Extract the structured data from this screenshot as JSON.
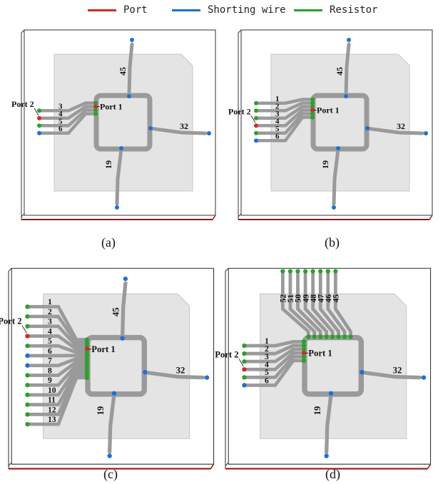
{
  "legend": {
    "items": [
      {
        "label": "Port",
        "color": "#d62728"
      },
      {
        "label": "Shorting wire",
        "color": "#1f6fd6"
      },
      {
        "label": "Resistor",
        "color": "#2ca02c"
      }
    ]
  },
  "colors": {
    "substrate": "#e4e4e4",
    "box_edge": "#8b1a1a",
    "trace": "#9a9a9a",
    "trace_edge": "#555555",
    "port": "#d62728",
    "short": "#1f6fd6",
    "resistor": "#2ca02c"
  },
  "panels": [
    {
      "caption": "(a)",
      "port1_label": "Port 1",
      "port2_label": "Port 2",
      "left_wires": [
        "3",
        "4",
        "5",
        "6"
      ],
      "left_terminals": [
        "resistor",
        "port",
        "resistor",
        "short"
      ],
      "top_wires": [],
      "wire_top": "45",
      "wire_right": "32",
      "wire_bottom": "19"
    },
    {
      "caption": "(b)",
      "port1_label": "Port 1",
      "port2_label": "Port 2",
      "left_wires": [
        "1",
        "2",
        "3",
        "4",
        "5",
        "6"
      ],
      "left_terminals": [
        "resistor",
        "resistor",
        "resistor",
        "port",
        "resistor",
        "short"
      ],
      "top_wires": [],
      "wire_top": "45",
      "wire_right": "32",
      "wire_bottom": "19"
    },
    {
      "caption": "(c)",
      "port1_label": "Port 1",
      "port2_label": "Port 2",
      "left_wires": [
        "1",
        "2",
        "3",
        "4",
        "5",
        "6",
        "7",
        "8",
        "9",
        "10",
        "11",
        "12",
        "13"
      ],
      "left_terminals": [
        "resistor",
        "resistor",
        "resistor",
        "port",
        "resistor",
        "short",
        "short",
        "resistor",
        "resistor",
        "resistor",
        "resistor",
        "resistor",
        "resistor"
      ],
      "top_wires": [],
      "wire_top": "45",
      "wire_right": "32",
      "wire_bottom": "19"
    },
    {
      "caption": "(d)",
      "port1_label": "Port 1",
      "port2_label": "Port 2",
      "left_wires": [
        "1",
        "2",
        "3",
        "4",
        "5",
        "6"
      ],
      "left_terminals": [
        "resistor",
        "resistor",
        "resistor",
        "port",
        "resistor",
        "short"
      ],
      "top_wires": [
        "52",
        "51",
        "50",
        "49",
        "48",
        "47",
        "46",
        "45"
      ],
      "wire_top": "",
      "wire_right": "32",
      "wire_bottom": "19"
    }
  ]
}
